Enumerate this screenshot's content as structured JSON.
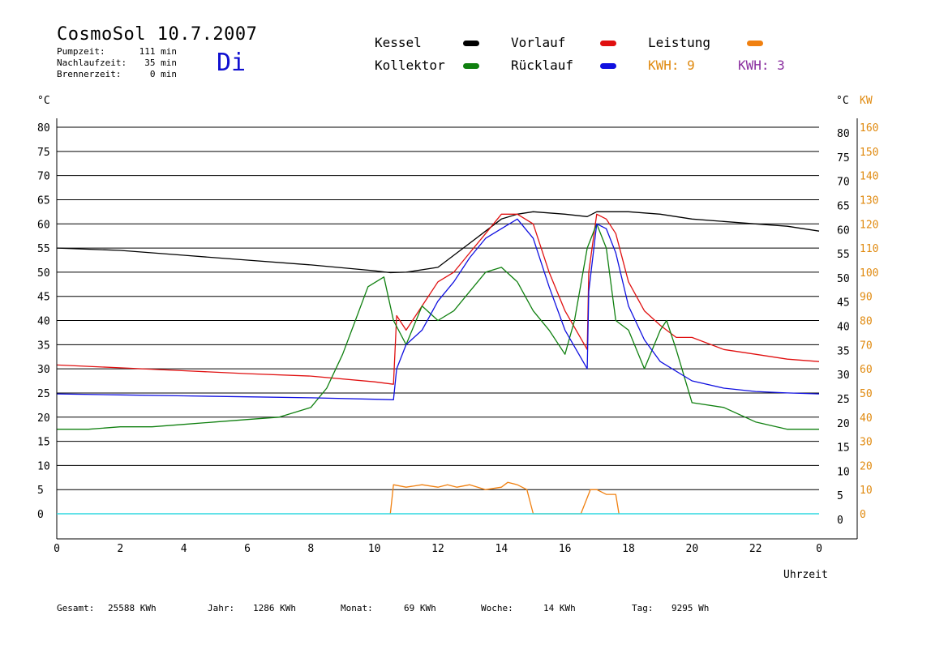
{
  "header": {
    "title": "CosmoSol 10.7.2007",
    "day": "Di",
    "stats": [
      {
        "label": "Pumpzeit:",
        "value": "111 min"
      },
      {
        "label": "Nachlaufzeit:",
        "value": "35 min"
      },
      {
        "label": "Brennerzeit:",
        "value": "0 min"
      }
    ]
  },
  "legend": {
    "kessel": {
      "label": "Kessel",
      "color": "#000000"
    },
    "vorlauf": {
      "label": "Vorlauf",
      "color": "#e01010"
    },
    "leistung": {
      "label": "Leistung",
      "color": "#f08010"
    },
    "kollektor": {
      "label": "Kollektor",
      "color": "#108010"
    },
    "ruecklauf": {
      "label": "Rücklauf",
      "color": "#1010e0"
    },
    "kwh1": {
      "label": "KWH: 9",
      "color": "#e08a10"
    },
    "kwh2": {
      "label": "KWH: 3",
      "color": "#8a2fa0"
    }
  },
  "axes": {
    "left_unit": "°C",
    "right_unit_c": "°C",
    "right_unit_kw": "KW",
    "xlabel": "Uhrzeit",
    "x_ticks": [
      "0",
      "2",
      "4",
      "6",
      "8",
      "10",
      "12",
      "14",
      "16",
      "18",
      "20",
      "22",
      "0"
    ],
    "y_ticks": [
      "0",
      "5",
      "10",
      "15",
      "20",
      "25",
      "30",
      "35",
      "40",
      "45",
      "50",
      "55",
      "60",
      "65",
      "70",
      "75",
      "80"
    ],
    "kw_ticks": [
      "0",
      "10",
      "20",
      "30",
      "40",
      "50",
      "60",
      "70",
      "80",
      "90",
      "100",
      "110",
      "120",
      "130",
      "140",
      "150",
      "160"
    ]
  },
  "footer": [
    {
      "label": "Gesamt:",
      "value": "25588 KWh"
    },
    {
      "label": "Jahr:",
      "value": "1286 KWh"
    },
    {
      "label": "Monat:",
      "value": "69 KWh"
    },
    {
      "label": "Woche:",
      "value": "14 KWh"
    },
    {
      "label": "Tag:",
      "value": "9295 Wh"
    }
  ],
  "chart_data": {
    "type": "line",
    "title": "CosmoSol 10.7.2007",
    "xlabel": "Uhrzeit",
    "ylabel": "°C",
    "y2label": "KW",
    "xlim": [
      0,
      24
    ],
    "ylim": [
      0,
      80
    ],
    "y2lim": [
      0,
      160
    ],
    "grid": true,
    "series": [
      {
        "name": "Kessel",
        "color": "#000000",
        "x": [
          0,
          2,
          4,
          6,
          8,
          10,
          10.5,
          11,
          12,
          13,
          13.5,
          14,
          14.5,
          15,
          16,
          16.7,
          17,
          17.5,
          18,
          19,
          20,
          21,
          22,
          23,
          24
        ],
        "y": [
          55,
          54.5,
          53.5,
          52.5,
          51.5,
          50.3,
          49.9,
          50,
          51,
          56,
          58.5,
          61,
          62,
          62.5,
          62,
          61.5,
          62.5,
          62.5,
          62.5,
          62,
          61,
          60.5,
          60,
          59.5,
          58.5
        ]
      },
      {
        "name": "Vorlauf",
        "color": "#e01010",
        "x": [
          0,
          2,
          4,
          6,
          8,
          10,
          10.6,
          10.7,
          11,
          11.5,
          12,
          12.5,
          13,
          13.5,
          14,
          14.5,
          15,
          15.5,
          16,
          16.7,
          16.75,
          17,
          17.3,
          17.6,
          18,
          18.5,
          19,
          19.5,
          20,
          21,
          22,
          23,
          24
        ],
        "y": [
          30.8,
          30.2,
          29.6,
          29,
          28.5,
          27.3,
          26.8,
          41,
          38,
          43,
          48,
          50,
          54,
          58,
          62,
          62,
          60,
          50,
          42,
          34,
          50,
          62,
          61,
          58,
          48,
          42,
          39,
          36.5,
          36.5,
          34,
          33,
          32,
          31.5
        ]
      },
      {
        "name": "Kollektor",
        "color": "#108010",
        "x": [
          0,
          1,
          2,
          3,
          4,
          5,
          6,
          7,
          8,
          8.5,
          9,
          9.4,
          9.8,
          10.3,
          10.6,
          11,
          11.5,
          12,
          12.5,
          13,
          13.5,
          14,
          14.5,
          15,
          15.5,
          16,
          16.3,
          16.7,
          17,
          17.3,
          17.6,
          18,
          18.5,
          19,
          19.2,
          19.5,
          20,
          21,
          22,
          23,
          24
        ],
        "y": [
          17.5,
          17.5,
          18,
          18,
          18.5,
          19,
          19.5,
          20,
          22,
          26,
          33,
          40,
          47,
          49,
          40,
          35,
          43,
          40,
          42,
          46,
          50,
          51,
          48,
          42,
          38,
          33,
          40,
          55,
          60,
          55,
          40,
          38,
          30,
          38,
          40,
          34,
          23,
          22,
          19,
          17.5,
          17.5
        ]
      },
      {
        "name": "Rücklauf",
        "color": "#1010e0",
        "x": [
          0,
          2,
          4,
          6,
          8,
          10,
          10.6,
          10.7,
          11,
          11.5,
          12,
          12.5,
          13,
          13.5,
          14,
          14.5,
          15,
          15.5,
          16,
          16.7,
          16.75,
          17,
          17.3,
          17.6,
          18,
          18.5,
          19,
          20,
          21,
          22,
          23,
          24
        ],
        "y": [
          24.8,
          24.6,
          24.4,
          24.2,
          24,
          23.7,
          23.6,
          30,
          35,
          38,
          44,
          48,
          53,
          57,
          59,
          61,
          57,
          47,
          38,
          30,
          46,
          60,
          59,
          54,
          43,
          36,
          31.5,
          27.5,
          26,
          25.3,
          25,
          24.8
        ]
      },
      {
        "name": "Leistung",
        "color": "#f08010",
        "x": [
          10.5,
          10.6,
          11,
          11.5,
          12,
          12.3,
          12.6,
          13,
          13.5,
          14,
          14.2,
          14.5,
          14.8,
          15,
          16.5,
          16.8,
          17,
          17.3,
          17.6,
          17.7
        ],
        "y": [
          0,
          6,
          5.5,
          6,
          5.5,
          6,
          5.5,
          6,
          5,
          5.5,
          6.5,
          6,
          5,
          0,
          0,
          5,
          5,
          4,
          4,
          0
        ]
      }
    ]
  }
}
